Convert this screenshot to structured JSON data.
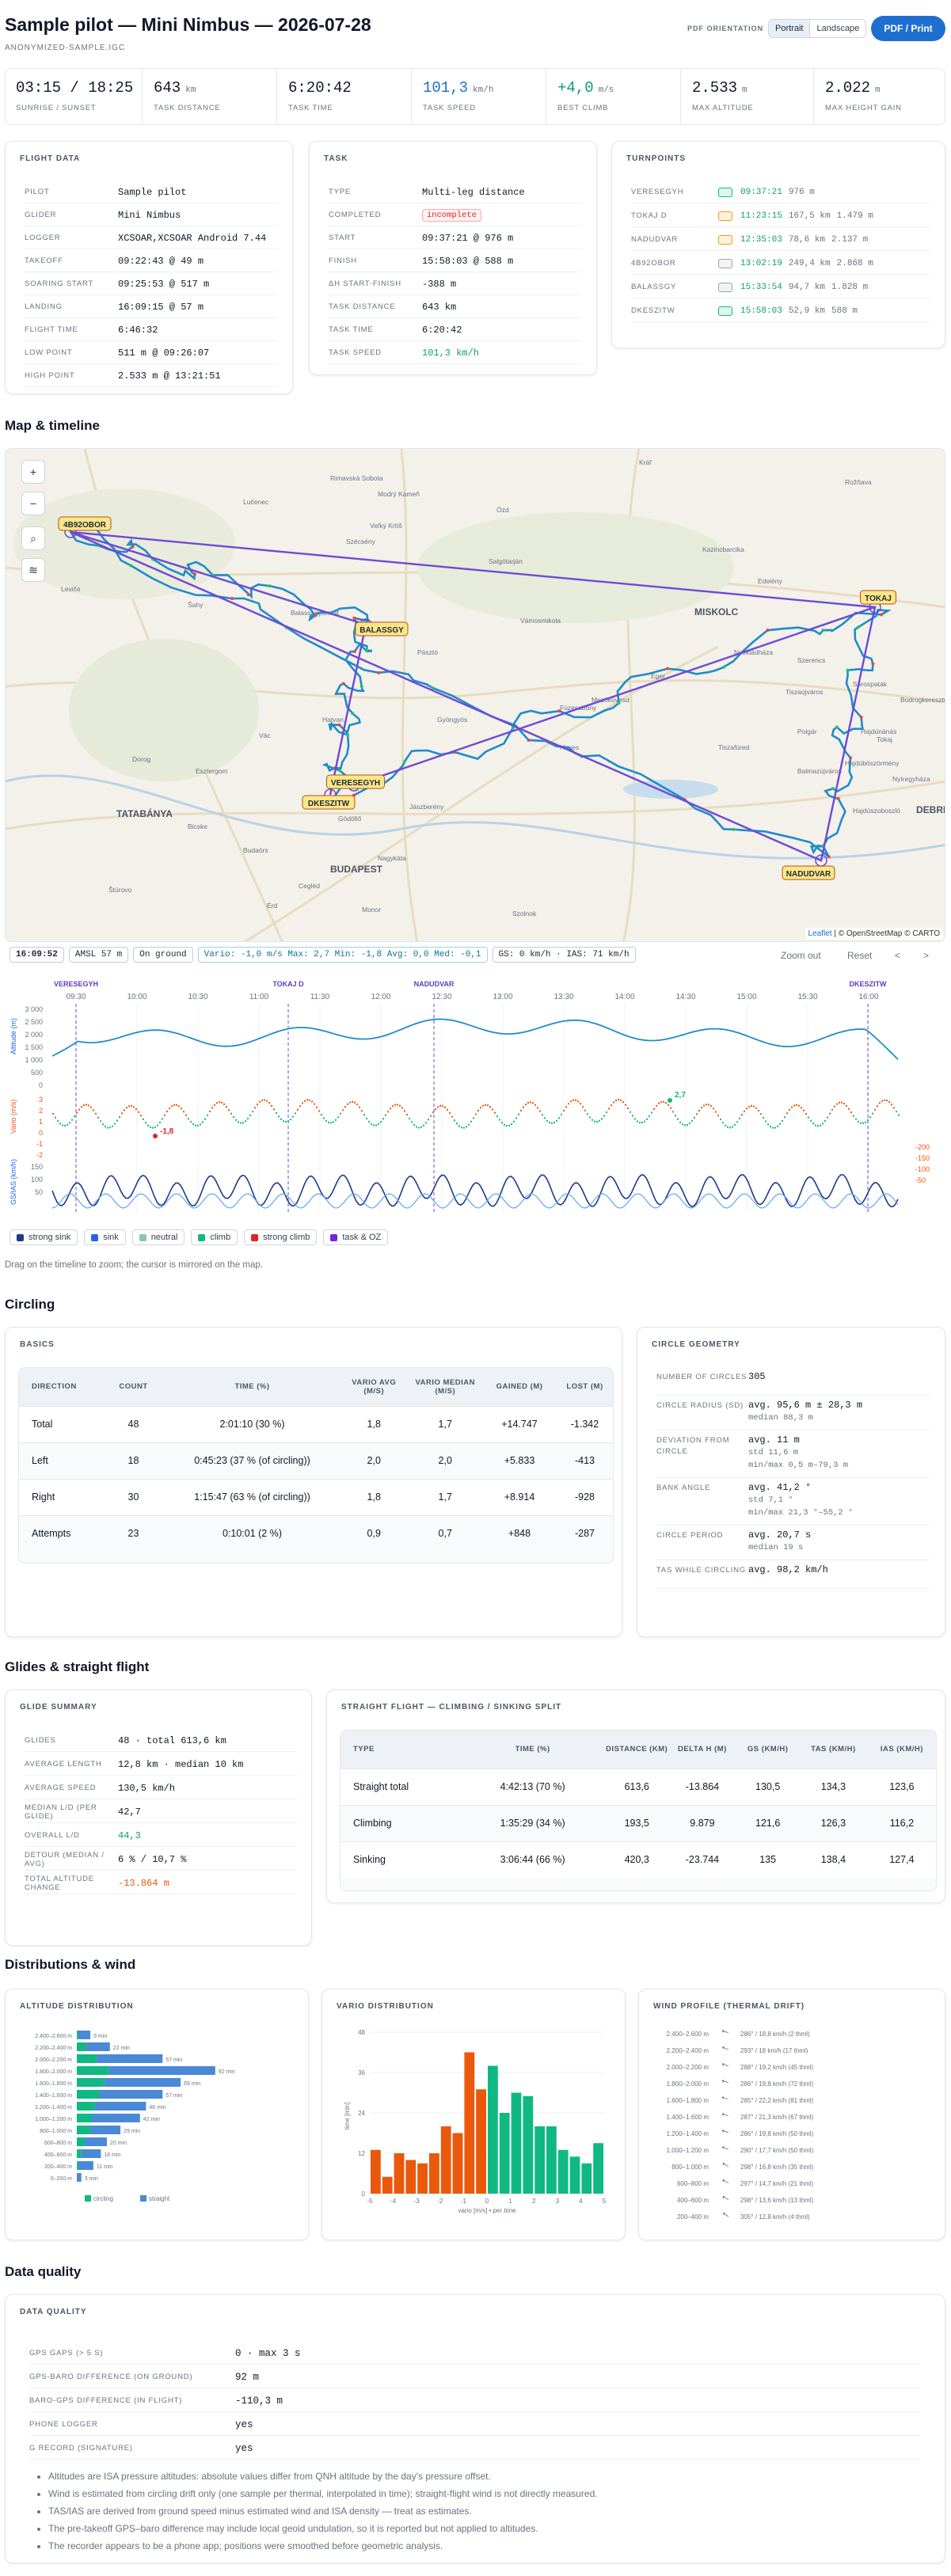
{
  "header": {
    "title": "Sample pilot — Mini Nimbus — 2026-07-28",
    "subtitle": "ANONYMIZED-SAMPLE.IGC",
    "orientation_label": "PDF ORIENTATION",
    "portrait": "Portrait",
    "landscape": "Landscape",
    "print": "PDF / Print"
  },
  "stats": [
    {
      "value": "03:15 / 18:25",
      "unit": "",
      "label": "SUNRISE / SUNSET",
      "color": "#111827"
    },
    {
      "value": "643",
      "unit": "km",
      "label": "TASK DISTANCE",
      "color": "#111827"
    },
    {
      "value": "6:20:42",
      "unit": "",
      "label": "TASK TIME",
      "color": "#111827"
    },
    {
      "value": "101,3",
      "unit": "km/h",
      "label": "TASK SPEED",
      "color": "#1d6fc9"
    },
    {
      "value": "+4,0",
      "unit": "m/s",
      "label": "BEST CLIMB",
      "color": "#0e9f6e"
    },
    {
      "value": "2.533",
      "unit": "m",
      "label": "MAX ALTITUDE",
      "color": "#111827"
    },
    {
      "value": "2.022",
      "unit": "m",
      "label": "MAX HEIGHT GAIN",
      "color": "#111827"
    }
  ],
  "flight": {
    "title": "FLIGHT DATA",
    "rows": [
      [
        "PILOT",
        "Sample pilot"
      ],
      [
        "GLIDER",
        "Mini Nimbus"
      ],
      [
        "LOGGER",
        "XCSOAR,XCSOAR Android 7.44"
      ],
      [
        "TAKEOFF",
        "09:22:43 @ 49 m"
      ],
      [
        "SOARING START",
        "09:25:53 @ 517 m"
      ],
      [
        "LANDING",
        "16:09:15 @ 57 m"
      ],
      [
        "FLIGHT TIME",
        "6:46:32"
      ],
      [
        "LOW POINT",
        "511 m @ 09:26:07"
      ],
      [
        "HIGH POINT",
        "2.533 m @ 13:21:51"
      ]
    ]
  },
  "task": {
    "title": "TASK",
    "rows": [
      [
        "TYPE",
        "Multi-leg distance"
      ],
      [
        "COMPLETED",
        "incomplete"
      ],
      [
        "START",
        "09:37:21 @ 976 m"
      ],
      [
        "FINISH",
        "15:58:03 @ 588 m"
      ],
      [
        "ΔH START-FINISH",
        "-388 m"
      ],
      [
        "TASK DISTANCE",
        "643 km"
      ],
      [
        "TASK TIME",
        "6:20:42"
      ],
      [
        "TASK SPEED",
        "101,3 km/h"
      ]
    ]
  },
  "turnpoints": {
    "title": "TURNPOINTS",
    "rows": [
      [
        "VERESEGYH",
        "09:37:21",
        "976 m",
        ""
      ],
      [
        "TOKAJ D",
        "11:23:15",
        "167,5 km",
        "1.479 m"
      ],
      [
        "NADUDVAR",
        "12:35:03",
        "78,6 km",
        "2.137 m"
      ],
      [
        "4B92OBOR",
        "13:02:19",
        "249,4 km",
        "2.868 m"
      ],
      [
        "BALASSGY",
        "15:33:54",
        "94,7 km",
        "1.828 m"
      ],
      [
        "DKESZITW",
        "15:58:03",
        "52,9 km",
        "588 m"
      ]
    ]
  },
  "map": {
    "section_title": "Map & timeline",
    "labels": [
      "4B92OBOR",
      "BALASSGY",
      "TOKAJ",
      "VERESEGYH",
      "DKESZITW",
      "NADUDVAR"
    ],
    "places": [
      "Salgótarján",
      "MISKOLC",
      "BUDAPEST",
      "DEBRECEN",
      "TATABÁNYA",
      "Eger",
      "Gyöngyös",
      "Hatvan",
      "Vác",
      "Szolnok",
      "Jászberény",
      "Mezőkövesd",
      "Tiszaújváros",
      "Nyíregyháza",
      "Hajdúszoboszló",
      "Cegléd",
      "Esztergom",
      "Balassagyarmat",
      "Rimavská Sobota",
      "Rožňava",
      "Lučenec",
      "Kazincbarcika",
      "Ózd",
      "Tokaj",
      "Sárospatak",
      "Gödöllő",
      "Budaörs",
      "Érd",
      "Monor",
      "Nagykáta",
      "Füzesabony",
      "Heves",
      "Tiszafüred",
      "Polgár",
      "Hajdúnánás",
      "Balmazújváros",
      "Hajdúböszörmény",
      "Nyékládháza",
      "Edelény",
      "Szécsény",
      "Pásztó",
      "Szerencs",
      "Bodrogkeresztúr",
      "Vámosmikola",
      "Dorog",
      "Bicske",
      "Veľký Krtíš",
      "Šahy",
      "Štúrovo",
      "Leviče",
      "Modrý Kameň",
      "Kráľ"
    ],
    "controls": {
      "zoom_in": "+",
      "zoom_out": "−",
      "search": "⌕",
      "layers": "≋"
    },
    "attribution_leaflet": "Leaflet",
    "attribution_rest": "| © OpenStreetMap © CARTO"
  },
  "timeline": {
    "time": "16:09:52",
    "amsl": "AMSL 57 m",
    "state": "On ground",
    "vario": "Vario: -1,0 m/s Max: 2,7 Min: -1,8 Avg: 0,0 Med: -0,1",
    "gs": "GS: 0 km/h · IAS: 71 km/h",
    "zoom_out": "Zoom out",
    "reset": "Reset",
    "prev": "<",
    "next": ">",
    "tp_labels": [
      "VERESEGYH",
      "TOKAJ D",
      "NADUDVAR",
      "DKESZITW"
    ],
    "times": [
      "09:30",
      "10:00",
      "10:30",
      "11:00",
      "11:30",
      "12:00",
      "12:30",
      "13:00",
      "13:30",
      "14:00",
      "14:30",
      "15:00",
      "15:30",
      "16:00"
    ],
    "alt_ticks": [
      "3 000",
      "2 500",
      "2 000",
      "1 500",
      "1 000",
      "500",
      "0"
    ],
    "vario_ticks": [
      "3",
      "2",
      "1",
      "0",
      "-1",
      "-2"
    ],
    "speed_ticks": [
      "200",
      "150",
      "100",
      "50"
    ],
    "speed_left": [
      "150",
      "100",
      "50"
    ],
    "speed_right": [
      "-200",
      "-150",
      "-100",
      "-50"
    ],
    "alt_label": "Altitude (m)",
    "vario_label": "Vario (m/s)",
    "speed_label": "GS/IAS (km/h)",
    "max_label": "2,7",
    "min_label": "-1,8",
    "legend": [
      {
        "name": "strong sink",
        "color": "#1e3a8a"
      },
      {
        "name": "sink",
        "color": "#2563eb"
      },
      {
        "name": "neutral",
        "color": "#93c5aa"
      },
      {
        "name": "climb",
        "color": "#10b981"
      },
      {
        "name": "strong climb",
        "color": "#dc2626"
      },
      {
        "name": "task & OZ",
        "color": "#6d28d9"
      }
    ],
    "hint": "Drag on the timeline to zoom; the cursor is mirrored on the map."
  },
  "circling": {
    "section_title": "Circling",
    "basics_title": "BASICS",
    "headers": [
      "DIRECTION",
      "COUNT",
      "TIME (%)",
      "VARIO AVG (m/s)",
      "VARIO MEDIAN (m/s)",
      "GAINED (m)",
      "LOST (m)"
    ],
    "rows": [
      [
        "Total",
        "48",
        "2:01:10 (30 %)",
        "1,8",
        "1,7",
        "+14.747",
        "-1.342"
      ],
      [
        "Left",
        "18",
        "0:45:23 (37 % (of circling))",
        "2,0",
        "2,0",
        "+5.833",
        "-413"
      ],
      [
        "Right",
        "30",
        "1:15:47 (63 % (of circling))",
        "1,8",
        "1,7",
        "+8.914",
        "-928"
      ],
      [
        "Attempts",
        "23",
        "0:10:01 (2 %)",
        "0,9",
        "0,7",
        "+848",
        "-287"
      ]
    ],
    "geometry_title": "CIRCLE GEOMETRY",
    "geometry": [
      [
        "NUMBER OF CIRCLES",
        [
          "305"
        ]
      ],
      [
        "CIRCLE RADIUS (SD)",
        [
          "avg. 95,6 m ± 28,3 m",
          "median 88,3 m"
        ]
      ],
      [
        "DEVIATION FROM CIRCLE",
        [
          "avg. 11 m",
          "std 11,6 m",
          "min/max 0,5 m–79,3 m"
        ]
      ],
      [
        "BANK ANGLE",
        [
          "avg. 41,2 °",
          "std 7,1 °",
          "min/max 21,3 °–55,2 °"
        ]
      ],
      [
        "CIRCLE PERIOD",
        [
          "avg. 20,7 s",
          "median 19 s"
        ]
      ],
      [
        "TAS WHILE CIRCLING",
        [
          "avg. 98,2 km/h"
        ]
      ]
    ]
  },
  "glides": {
    "section_title": "Glides & straight flight",
    "summary_title": "GLIDE SUMMARY",
    "summary": [
      [
        "GLIDES",
        "48 · total 613,6 km"
      ],
      [
        "AVERAGE LENGTH",
        "12,8 km · median 10 km"
      ],
      [
        "AVERAGE SPEED",
        "130,5 km/h"
      ],
      [
        "MEDIAN L/D (PER GLIDE)",
        "42,7"
      ],
      [
        "OVERALL L/D",
        "44,3"
      ],
      [
        "DETOUR (MEDIAN / AVG)",
        "6 % / 10,7 %"
      ],
      [
        "TOTAL ALTITUDE CHANGE",
        "-13.864 m"
      ]
    ],
    "split_title": "STRAIGHT FLIGHT — CLIMBING / SINKING SPLIT",
    "headers": [
      "TYPE",
      "TIME (%)",
      "DISTANCE (km)",
      "DELTA H (m)",
      "GS (km/h)",
      "TAS (km/h)",
      "IAS (km/h)"
    ],
    "rows": [
      [
        "Straight total",
        "4:42:13 (70 %)",
        "613,6",
        "-13.864",
        "130,5",
        "134,3",
        "123,6"
      ],
      [
        "Climbing",
        "1:35:29 (34 %)",
        "193,5",
        "9.879",
        "121,6",
        "126,3",
        "116,2"
      ],
      [
        "Sinking",
        "3:06:44 (66 %)",
        "420,3",
        "-23.744",
        "135",
        "138,4",
        "127,4"
      ]
    ]
  },
  "dist": {
    "section_title": "Distributions & wind",
    "alt_title": "ALTITUDE DISTRIBUTION",
    "vario_title": "VARIO DISTRIBUTION",
    "wind_title": "WIND PROFILE (THERMAL DRIFT)",
    "alt_legend": [
      "circling",
      "straight"
    ],
    "vario_xlabel": "vario [m/s] • per time",
    "vario_ylabel": "time [min]",
    "wind": [
      [
        "2.400–2.600 m",
        "286° / 18,8 km/h (2 thml)",
        286
      ],
      [
        "2.200–2.400 m",
        "293° / 18 km/h (17 thml)",
        293
      ],
      [
        "2.000–2.200 m",
        "288° / 19,2 km/h (45 thml)",
        288
      ],
      [
        "1.800–2.000 m",
        "286° / 19,8 km/h (72 thml)",
        286
      ],
      [
        "1.600–1.800 m",
        "285° / 22,2 km/h (81 thml)",
        285
      ],
      [
        "1.400–1.600 m",
        "287° / 21,3 km/h (67 thml)",
        287
      ],
      [
        "1.200–1.400 m",
        "286° / 19,8 km/h (50 thml)",
        286
      ],
      [
        "1.000–1.200 m",
        "290° / 17,7 km/h (50 thml)",
        290
      ],
      [
        "800–1.000 m",
        "298° / 16,8 km/h (35 thml)",
        298
      ],
      [
        "600–800 m",
        "297° / 14,7 km/h (21 thml)",
        297
      ],
      [
        "400–600 m",
        "298° / 13,6 km/h (13 thml)",
        298
      ],
      [
        "200–400 m",
        "305° / 12,8 km/h (4 thml)",
        305
      ]
    ]
  },
  "quality": {
    "section_title": "Data quality",
    "title": "DATA QUALITY",
    "rows": [
      [
        "GPS GAPS (> 5 S)",
        "0 · max 3 s"
      ],
      [
        "GPS-BARO DIFFERENCE (ON GROUND)",
        "92 m"
      ],
      [
        "BARO-GPS DIFFERENCE (IN FLIGHT)",
        "-110,3 m"
      ],
      [
        "PHONE LOGGER",
        "yes"
      ],
      [
        "G RECORD (SIGNATURE)",
        "yes"
      ]
    ],
    "notes": [
      "Altitudes are ISA pressure altitudes: absolute values differ from QNH altitude by the day's pressure offset.",
      "Wind is estimated from circling drift only (one sample per thermal, interpolated in time); straight-flight wind is not directly measured.",
      "TAS/IAS are derived from ground speed minus estimated wind and ISA density — treat as estimates.",
      "The pre-takeoff GPS–baro difference may include local geoid undulation, so it is reported but not applied to altitudes.",
      "The recorder appears to be a phone app; positions were smoothed before geometric analysis."
    ]
  },
  "chart_data": [
    {
      "type": "bar",
      "title": "ALTITUDE DISTRIBUTION",
      "categories": [
        "2.400–2.600 m",
        "2.200–2.400 m",
        "2.000–2.200 m",
        "1.800–2.000 m",
        "1.600–1.800 m",
        "1.400–1.600 m",
        "1.200–1.400 m",
        "1.000–1.200 m",
        "800–1.000 m",
        "600–800 m",
        "400–600 m",
        "200–400 m",
        "0–200 m"
      ],
      "series": [
        {
          "name": "circling",
          "values": [
            1,
            6,
            13,
            21,
            18,
            15,
            12,
            10,
            9,
            5,
            3,
            1,
            0
          ]
        },
        {
          "name": "straight",
          "values": [
            8,
            16,
            44,
            71,
            51,
            42,
            34,
            32,
            20,
            15,
            13,
            10,
            3
          ]
        }
      ],
      "labels": [
        "9 min",
        "22 min",
        "57 min",
        "92 min",
        "69 min",
        "57 min",
        "46 min",
        "42 min",
        "29 min",
        "20 min",
        "16 min",
        "11 min",
        "3 min"
      ]
    },
    {
      "type": "bar",
      "title": "VARIO DISTRIBUTION",
      "xlabel": "vario [m/s] • per time",
      "ylabel": "time [min]",
      "yticks": [
        0,
        12,
        24,
        36,
        48
      ],
      "xticks": [
        -5,
        -4,
        -3,
        -2,
        -1,
        0,
        1,
        2,
        3,
        4,
        5
      ],
      "x": [
        -4.75,
        -4.25,
        -3.75,
        -3.25,
        -2.75,
        -2.25,
        -1.75,
        -1.25,
        -0.75,
        -0.25,
        0.25,
        0.75,
        1.25,
        1.75,
        2.25,
        2.75,
        3.25,
        3.75,
        4.25,
        4.75
      ],
      "values": [
        13,
        5,
        12,
        10,
        9,
        12,
        20,
        18,
        42,
        31,
        38,
        24,
        30,
        29,
        20,
        20,
        13,
        11,
        9,
        15
      ],
      "colors": [
        "#ea580c",
        "#ea580c",
        "#ea580c",
        "#ea580c",
        "#ea580c",
        "#ea580c",
        "#ea580c",
        "#ea580c",
        "#ea580c",
        "#ea580c",
        "#10b981",
        "#10b981",
        "#10b981",
        "#10b981",
        "#10b981",
        "#10b981",
        "#10b981",
        "#10b981",
        "#10b981",
        "#10b981"
      ]
    }
  ]
}
